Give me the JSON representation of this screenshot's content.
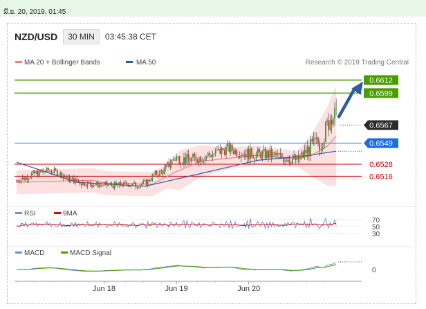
{
  "date_line": "มี.ย. 20, 2019, 01:45",
  "header": {
    "pair": "NZD/USD",
    "timeframe": "30 MIN",
    "time": "03:45:38 CET"
  },
  "legend": {
    "ma20": "MA 20 + Bollinger Bands",
    "ma50": "MA 50",
    "credit": "Research © 2019 Trading Central"
  },
  "colors": {
    "ma20": "#f08080",
    "ma50": "#2c5aa0",
    "bands": "#fde0e0",
    "resistance": "#4a9c00",
    "support": "#cc0000",
    "current": "#2b2b2b",
    "pivot": "#1a6ee0",
    "arrow": "#2c5aa0",
    "rsi": "#6b8fd6",
    "rsi_ma": "#e00000",
    "macd": "#6b8fd6",
    "macd_signal": "#4a9c00"
  },
  "levels": [
    {
      "label": "0.6612",
      "value": 0.6612,
      "kind": "resistance"
    },
    {
      "label": "0.6599",
      "value": 0.6599,
      "kind": "resistance"
    },
    {
      "label": "0.6567",
      "value": 0.6567,
      "kind": "current"
    },
    {
      "label": "0.6549",
      "value": 0.6549,
      "kind": "pivot"
    },
    {
      "label": "0.6528",
      "value": 0.6528,
      "kind": "support"
    },
    {
      "label": "0.6516",
      "value": 0.6516,
      "kind": "support"
    }
  ],
  "rsi": {
    "legend_rsi": "RSI",
    "legend_ma": "9MA",
    "ticks": [
      "70",
      "50",
      "30"
    ]
  },
  "macd": {
    "legend_macd": "MACD",
    "legend_signal": "MACD Signal",
    "ticks": [
      "0"
    ]
  },
  "chart_data": {
    "type": "candlestick",
    "x_ticks": [
      "Jun 18",
      "Jun 19",
      "Jun 20"
    ],
    "ylim": [
      0.649,
      0.662
    ],
    "price_path": [
      [
        0,
        0.6512
      ],
      [
        5,
        0.6514
      ],
      [
        10,
        0.6518
      ],
      [
        16,
        0.652
      ],
      [
        22,
        0.6522
      ],
      [
        28,
        0.6519
      ],
      [
        35,
        0.6513
      ],
      [
        42,
        0.651
      ],
      [
        50,
        0.6508
      ],
      [
        58,
        0.6507
      ],
      [
        66,
        0.6507
      ],
      [
        74,
        0.6508
      ],
      [
        80,
        0.6507
      ],
      [
        86,
        0.651
      ],
      [
        92,
        0.6518
      ],
      [
        98,
        0.6522
      ],
      [
        102,
        0.653
      ],
      [
        106,
        0.6535
      ],
      [
        110,
        0.6533
      ],
      [
        116,
        0.6533
      ],
      [
        124,
        0.6536
      ],
      [
        132,
        0.6539
      ],
      [
        140,
        0.6544
      ],
      [
        146,
        0.6541
      ],
      [
        152,
        0.6539
      ],
      [
        158,
        0.6538
      ],
      [
        164,
        0.6538
      ],
      [
        170,
        0.6537
      ],
      [
        176,
        0.6535
      ],
      [
        182,
        0.6534
      ],
      [
        186,
        0.6532
      ],
      [
        188,
        0.6535
      ],
      [
        190,
        0.6537
      ],
      [
        194,
        0.6544
      ],
      [
        198,
        0.6548
      ],
      [
        202,
        0.655
      ],
      [
        206,
        0.6566
      ],
      [
        209,
        0.6579
      ],
      [
        212,
        0.6573
      ]
    ],
    "price_noise": [
      [
        0,
        1.2
      ],
      [
        86,
        1.0
      ],
      [
        102,
        1.8
      ],
      [
        186,
        2.0
      ],
      [
        212,
        4.0
      ]
    ],
    "candles_per_day": 48,
    "jun18_index": 58,
    "ma20_path": [
      [
        0,
        0.651
      ],
      [
        50,
        0.6512
      ],
      [
        60,
        0.6509
      ],
      [
        90,
        0.6508
      ],
      [
        105,
        0.652
      ],
      [
        122,
        0.6531
      ],
      [
        160,
        0.6537
      ],
      [
        186,
        0.6533
      ],
      [
        196,
        0.6537
      ],
      [
        206,
        0.6546
      ],
      [
        212,
        0.6556
      ]
    ],
    "band_width_path": [
      [
        0,
        0.0012
      ],
      [
        100,
        0.0012
      ],
      [
        108,
        0.002
      ],
      [
        140,
        0.0011
      ],
      [
        186,
        0.0008
      ],
      [
        194,
        0.0018
      ],
      [
        212,
        0.005
      ]
    ],
    "ma50_path": [
      [
        0,
        0.653
      ],
      [
        40,
        0.651
      ],
      [
        85,
        0.6506
      ],
      [
        120,
        0.6518
      ],
      [
        160,
        0.6532
      ],
      [
        190,
        0.6536
      ],
      [
        212,
        0.6541
      ]
    ],
    "rsi_range": [
      20,
      80
    ],
    "macd_range": [
      -0.0012,
      0.0012
    ]
  }
}
